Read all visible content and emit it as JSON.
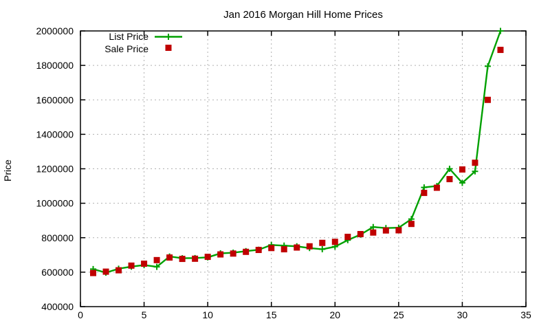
{
  "chart_data": {
    "type": "line",
    "title": "Jan 2016 Morgan Hill Home Prices",
    "xlabel": "",
    "ylabel": "Price",
    "xlim": [
      0,
      35
    ],
    "ylim": [
      400000,
      2000000
    ],
    "x_ticks": [
      0,
      5,
      10,
      15,
      20,
      25,
      30,
      35
    ],
    "y_ticks": [
      400000,
      600000,
      800000,
      1000000,
      1200000,
      1400000,
      1600000,
      1800000,
      2000000
    ],
    "grid": true,
    "legend_position": "top-left",
    "x": [
      1,
      2,
      3,
      4,
      5,
      6,
      7,
      8,
      9,
      10,
      11,
      12,
      13,
      14,
      15,
      16,
      17,
      18,
      19,
      20,
      21,
      22,
      23,
      24,
      25,
      26,
      27,
      28,
      29,
      30,
      31,
      32,
      33
    ],
    "series": [
      {
        "name": "List Price",
        "marker": "plus",
        "line": true,
        "color": "#00a000",
        "values": [
          618000,
          597000,
          620000,
          632000,
          641000,
          631000,
          691000,
          681000,
          682000,
          686000,
          709000,
          713000,
          722000,
          730000,
          758000,
          754000,
          750000,
          740000,
          733000,
          748000,
          786000,
          818000,
          862000,
          856000,
          858000,
          908000,
          1092000,
          1100000,
          1200000,
          1118000,
          1185000,
          1795000,
          2000000
        ]
      },
      {
        "name": "Sale Price",
        "marker": "square",
        "line": false,
        "color": "#c00000",
        "values": [
          595000,
          603000,
          611000,
          638000,
          649000,
          670000,
          685000,
          677000,
          678000,
          689000,
          703000,
          708000,
          718000,
          729000,
          740000,
          733000,
          743000,
          750000,
          770000,
          776000,
          805000,
          821000,
          830000,
          842000,
          843000,
          880000,
          1060000,
          1090000,
          1140000,
          1196000,
          1235000,
          1600000,
          1890000
        ]
      }
    ]
  },
  "colors": {
    "list_price": "#00a000",
    "sale_price": "#c00000",
    "grid": "#b0b0b0",
    "border": "#000000",
    "text": "#000000",
    "background": "#ffffff"
  }
}
